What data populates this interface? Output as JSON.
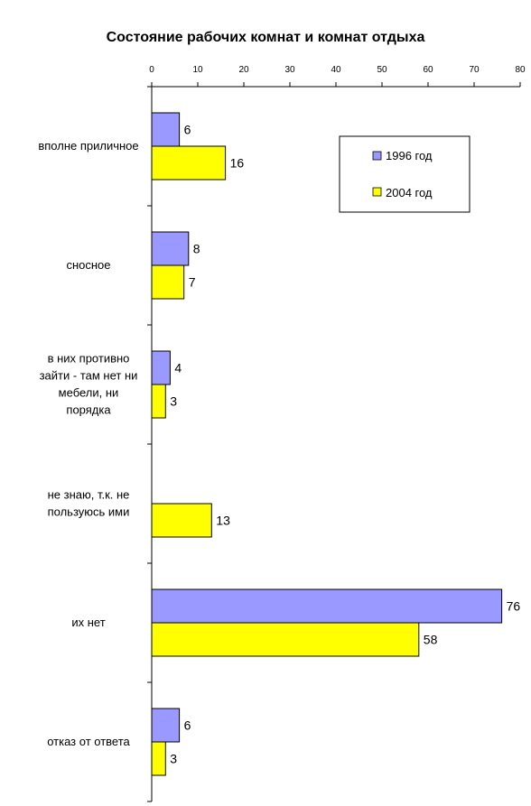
{
  "chart_data": {
    "type": "bar",
    "orientation": "horizontal",
    "title": "Состояние рабочих комнат и комнат отдыха",
    "xlim": [
      0,
      80
    ],
    "xticks": [
      0,
      10,
      20,
      30,
      40,
      50,
      60,
      70,
      80
    ],
    "categories": [
      [
        "вполне приличное"
      ],
      [
        "сносное"
      ],
      [
        "в них противно",
        "зайти - там нет ни",
        "мебели, ни",
        "порядка"
      ],
      [
        "не знаю, т.к. не",
        "пользуюсь ими"
      ],
      [
        "их нет"
      ],
      [
        "отказ от ответа"
      ]
    ],
    "series": [
      {
        "name": "1996 год",
        "color": "#9999ff",
        "values": [
          6,
          8,
          4,
          null,
          76,
          6
        ]
      },
      {
        "name": "2004 год",
        "color": "#ffff00",
        "values": [
          16,
          7,
          3,
          13,
          58,
          3
        ]
      }
    ],
    "legend_position": "top-right",
    "grid": false
  }
}
